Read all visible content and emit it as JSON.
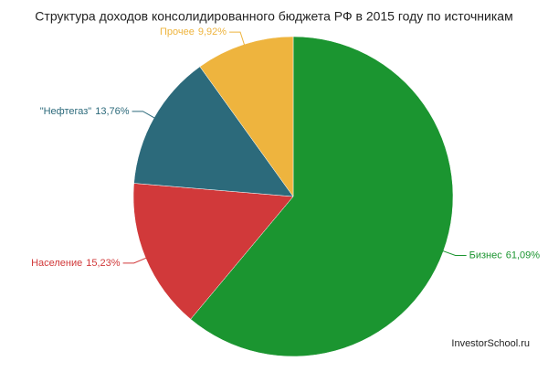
{
  "chart_data": {
    "type": "pie",
    "title": "Структура доходов консолидированного бюджета РФ в 2015 году по источникам",
    "categories": [
      "Бизнес",
      "Население",
      "\"Нефтегаз\"",
      "Прочее"
    ],
    "values": [
      61.09,
      15.23,
      13.76,
      9.92
    ],
    "value_labels": [
      "61,09%",
      "15,23%",
      "13,76%",
      "9,92%"
    ],
    "colors": [
      "#1b9530",
      "#d1393a",
      "#2c6a7b",
      "#eeb43e"
    ],
    "watermark": "InvestorSchool.ru"
  }
}
